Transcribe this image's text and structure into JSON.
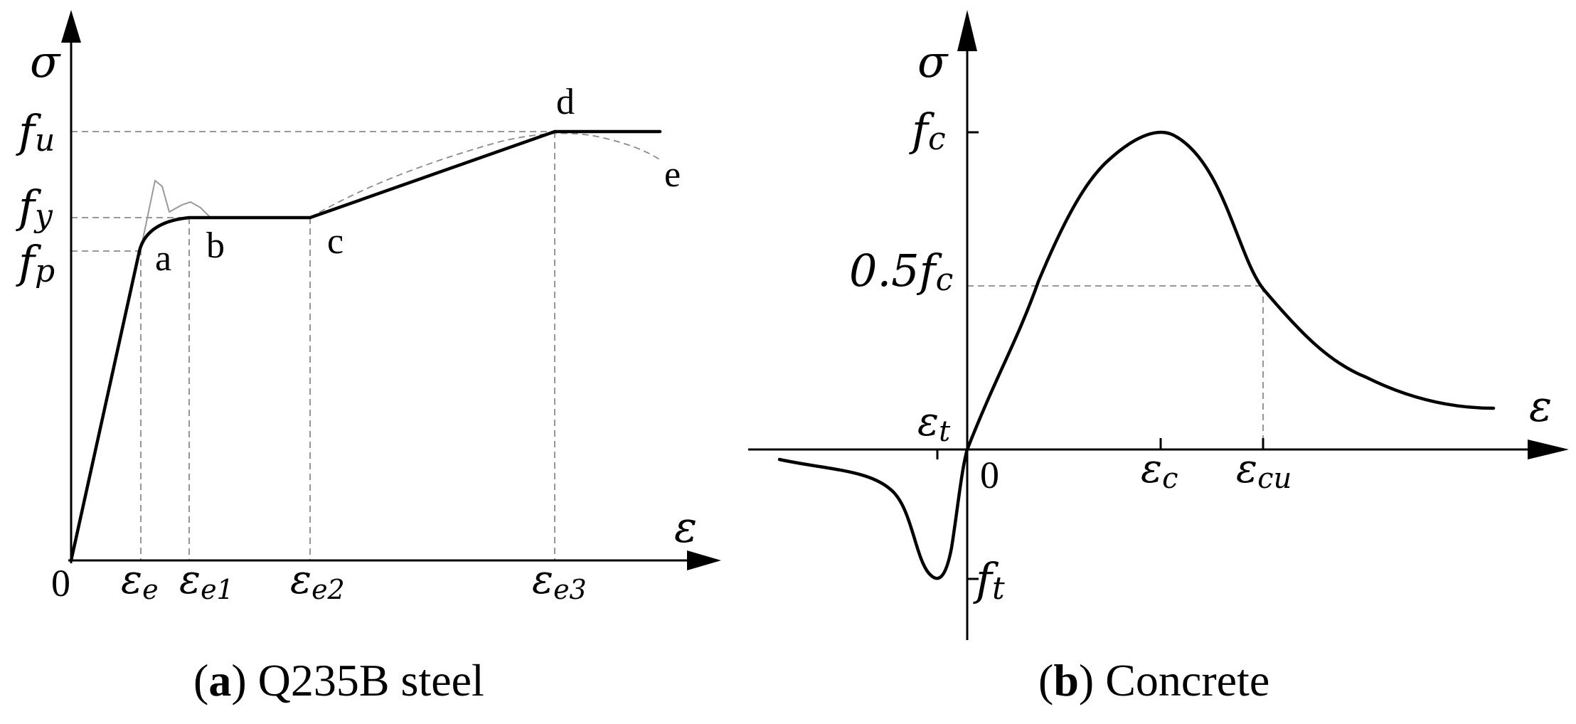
{
  "panel_a": {
    "caption_letter": "a",
    "caption_text": " Q235B steel",
    "sigma": "σ",
    "eps": "ε",
    "origin": "0",
    "fu": {
      "base": "f",
      "sub": "u"
    },
    "fy": {
      "base": "f",
      "sub": "y"
    },
    "fp": {
      "base": "f",
      "sub": "p"
    },
    "points": {
      "a": "a",
      "b": "b",
      "c": "c",
      "d": "d",
      "e": "e"
    },
    "strains": [
      {
        "base": "ε",
        "sub": "e"
      },
      {
        "base": "ε",
        "sub": "e1"
      },
      {
        "base": "ε",
        "sub": "e2"
      },
      {
        "base": "ε",
        "sub": "e3"
      }
    ]
  },
  "panel_b": {
    "caption_letter": "b",
    "caption_text": " Concrete",
    "sigma": "σ",
    "eps": "ε",
    "origin": "0",
    "fc": {
      "base": "f",
      "sub": "c"
    },
    "half_fc": {
      "prefix": "0.5",
      "base": "f",
      "sub": "c"
    },
    "ft": {
      "base": "f",
      "sub": "t"
    },
    "eps_t": {
      "base": "ε",
      "sub": "t"
    },
    "eps_c": {
      "base": "ε",
      "sub": "c"
    },
    "eps_cu": {
      "base": "ε",
      "sub": "cu"
    }
  }
}
